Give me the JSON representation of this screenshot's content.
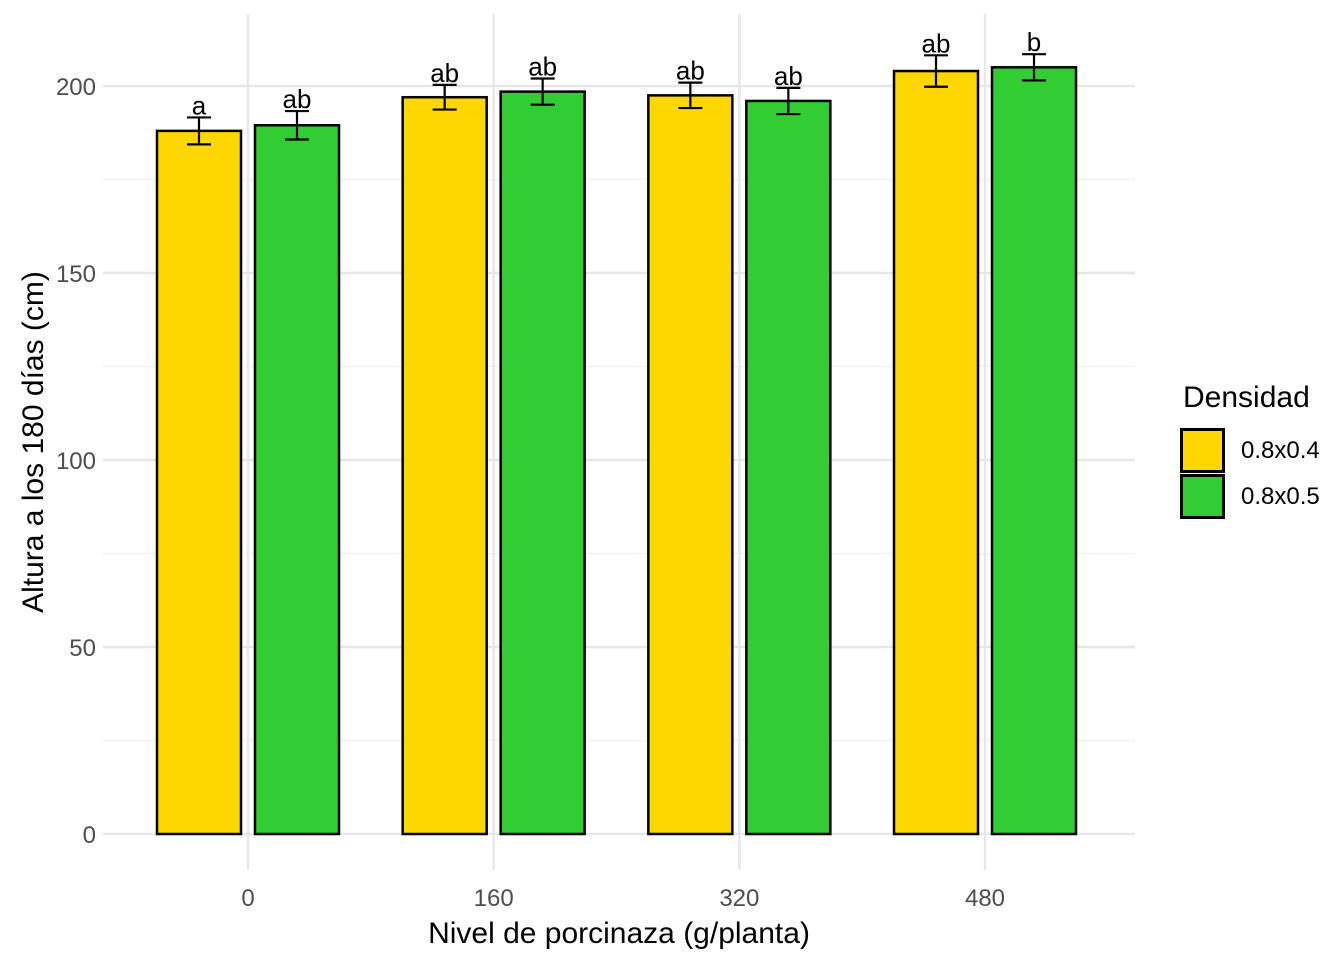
{
  "chart_data": {
    "type": "bar",
    "title": "",
    "xlabel": "Nivel de porcinaza (g/planta)",
    "ylabel": "Altura a los 180 días (cm)",
    "legend_title": "Densidad",
    "legend_position": "right",
    "categories": [
      "0",
      "160",
      "320",
      "480"
    ],
    "series": [
      {
        "name": "0.8x0.4",
        "color": "#FFD700",
        "values": [
          188,
          197,
          197.5,
          204
        ],
        "errors": [
          3.6,
          3.3,
          3.4,
          4.2
        ],
        "sig_letters": [
          "a",
          "ab",
          "ab",
          "ab"
        ]
      },
      {
        "name": "0.8x0.5",
        "color": "#32CD32",
        "values": [
          189.5,
          198.5,
          196,
          205
        ],
        "errors": [
          3.8,
          3.5,
          3.5,
          3.5
        ],
        "sig_letters": [
          "ab",
          "ab",
          "ab",
          "b"
        ]
      }
    ],
    "y_ticks": [
      0,
      50,
      100,
      150,
      200
    ],
    "y_minor_ticks": [
      25,
      75,
      125,
      175
    ],
    "ylim": [
      -10,
      219
    ],
    "grid": true,
    "bar_outline_color": "#000000",
    "error_bar_color": "#000000",
    "axis_text_color": "#4D4D4D",
    "axis_title_color": "#000000",
    "sig_letter_color": "#000000",
    "grid_major_color": "#E7E7E7",
    "grid_minor_color": "#F1F1F1",
    "background": "#FFFFFF"
  }
}
